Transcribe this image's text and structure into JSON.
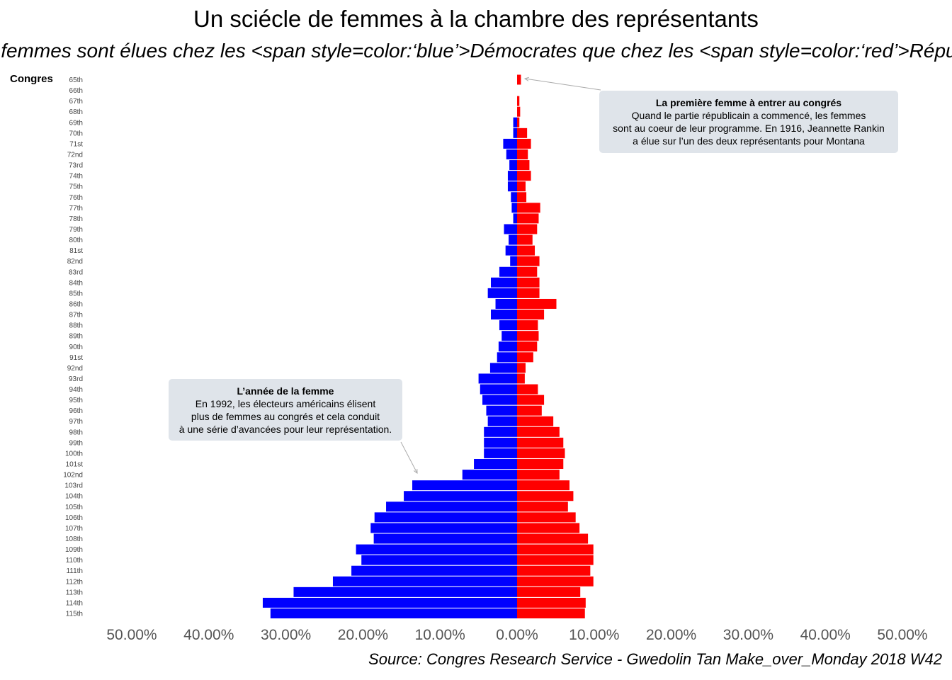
{
  "title": "Un sciécle de femmes à la chambre des représentants",
  "subtitle": "Plus de femmes sont élues chez les <span style=color:‘blue’>Démocrates que chez les <span style=color:‘red’>Républicains",
  "source": "Source: Congres Research Service - Gwedolin Tan Make_over_Monday 2018 W42",
  "colors": {
    "democrats": "#0000ff",
    "republicans": "#ff0000",
    "annotation_bg": "#dfe4ea"
  },
  "annotations": [
    {
      "title": "La première femme à entrer au congrés",
      "lines": [
        "Quand le partie républicain a commencé, les femmes",
        "sont au coeur de leur programme. En 1916, Jeannette Rankin",
        "a élue sur l’un des deux représentants pour Montana"
      ]
    },
    {
      "title": "L’année de la femme",
      "lines": [
        "En 1992, les électeurs américains élisent",
        "plus de femmes au congrés et cela conduit",
        "à une série d’avancées pour leur représentation."
      ]
    }
  ],
  "chart_data": {
    "type": "bar",
    "orientation": "horizontal-diverging",
    "ylabel": "Congres",
    "xlim": [
      -50,
      50
    ],
    "x_ticks": [
      "50.00%",
      "40.00%",
      "30.00%",
      "20.00%",
      "10.00%",
      "0.00%",
      "10.00%",
      "20.00%",
      "30.00%",
      "40.00%",
      "50.00%"
    ],
    "categories": [
      "65th",
      "66th",
      "67th",
      "68th",
      "69th",
      "70th",
      "71st",
      "72nd",
      "73rd",
      "74th",
      "75th",
      "76th",
      "77th",
      "78th",
      "79th",
      "80th",
      "81st",
      "82nd",
      "83rd",
      "84th",
      "85th",
      "86th",
      "87th",
      "88th",
      "89th",
      "90th",
      "91st",
      "92nd",
      "93rd",
      "94th",
      "95th",
      "96th",
      "97th",
      "98th",
      "99th",
      "100th",
      "101st",
      "102nd",
      "103rd",
      "104th",
      "105th",
      "106th",
      "107th",
      "108th",
      "109th",
      "110th",
      "111th",
      "112th",
      "113th",
      "114th",
      "115th"
    ],
    "series": [
      {
        "values": [
          0,
          0,
          0,
          0,
          0.5,
          0.5,
          1.8,
          1.4,
          1.0,
          1.2,
          1.2,
          0.8,
          0.7,
          0.5,
          1.7,
          1.1,
          1.5,
          0.9,
          2.3,
          3.4,
          3.8,
          2.8,
          3.4,
          2.3,
          2.0,
          2.4,
          2.6,
          3.5,
          5.0,
          4.8,
          4.5,
          4.0,
          3.8,
          4.3,
          4.3,
          4.3,
          5.6,
          7.1,
          13.6,
          14.7,
          17.0,
          18.5,
          19.0,
          18.6,
          20.9,
          20.2,
          21.5,
          23.9,
          29.0,
          33.0,
          32.0
        ]
      },
      {
        "values": [
          0.5,
          0,
          0.3,
          0.4,
          0.3,
          1.3,
          1.8,
          1.4,
          1.6,
          1.8,
          1.1,
          1.2,
          3.0,
          2.8,
          2.6,
          2.0,
          2.3,
          2.9,
          2.6,
          2.9,
          2.9,
          5.1,
          3.5,
          2.7,
          2.8,
          2.6,
          2.1,
          1.1,
          1.0,
          2.7,
          3.5,
          3.2,
          4.7,
          5.5,
          6.0,
          6.2,
          6.0,
          5.5,
          6.8,
          7.3,
          6.6,
          7.6,
          8.1,
          9.2,
          9.9,
          9.9,
          9.5,
          9.9,
          8.2,
          8.9,
          8.8
        ]
      }
    ]
  }
}
